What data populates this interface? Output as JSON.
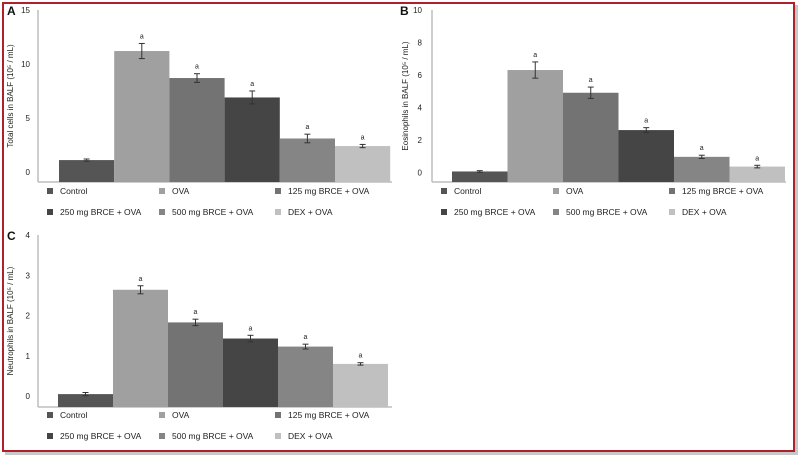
{
  "colors": {
    "frame_border": "#b0202a",
    "axis": "#bdbdbd",
    "error_bar": "#333333",
    "text": "#222222"
  },
  "groups": [
    {
      "name": "Control",
      "color": "#555555"
    },
    {
      "name": "OVA",
      "color": "#a0a0a0"
    },
    {
      "name": "125 mg BRCE + OVA",
      "color": "#737373"
    },
    {
      "name": "250 mg BRCE + OVA",
      "color": "#454545"
    },
    {
      "name": "500 mg BRCE + OVA",
      "color": "#858585"
    },
    {
      "name": "DEX + OVA",
      "color": "#c0c0c0"
    }
  ],
  "chart_data": [
    {
      "panel": "A",
      "type": "bar",
      "title": "",
      "xlabel": "",
      "ylabel": "Total cells in BALF (10⁵ / mL)",
      "categories": [
        "Control",
        "OVA",
        "125 mg BRCE + OVA",
        "250 mg BRCE + OVA",
        "500 mg BRCE + OVA",
        "DEX + OVA"
      ],
      "values": [
        1.1,
        11.2,
        8.7,
        6.9,
        3.1,
        2.4
      ],
      "errors": [
        0.1,
        0.7,
        0.4,
        0.6,
        0.4,
        0.15
      ],
      "annotations": [
        "",
        "a",
        "a",
        "a",
        "a",
        "a"
      ],
      "yticks": [
        0,
        5,
        10,
        15
      ],
      "ylim": [
        -0.93,
        15
      ],
      "grid": false,
      "legend_position": "bottom"
    },
    {
      "panel": "B",
      "type": "bar",
      "title": "",
      "xlabel": "",
      "ylabel": "Eosinophils in BALF (10⁵ / mL)",
      "categories": [
        "Control",
        "OVA",
        "125 mg BRCE + OVA",
        "250 mg BRCE + OVA",
        "500 mg BRCE + OVA",
        "DEX + OVA"
      ],
      "values": [
        0.05,
        6.3,
        4.9,
        2.6,
        0.95,
        0.35
      ],
      "errors": [
        0.05,
        0.5,
        0.35,
        0.15,
        0.1,
        0.08
      ],
      "annotations": [
        "",
        "a",
        "a",
        "a",
        "a",
        "a"
      ],
      "yticks": [
        0,
        2,
        4,
        6,
        8,
        10
      ],
      "ylim": [
        -0.6,
        10
      ],
      "grid": false,
      "legend_position": "bottom"
    },
    {
      "panel": "C",
      "type": "bar",
      "title": "",
      "xlabel": "",
      "ylabel": "Neutrophils in BALF (10⁵ / mL)",
      "categories": [
        "Control",
        "OVA",
        "125 mg BRCE + OVA",
        "250 mg BRCE + OVA",
        "500 mg BRCE + OVA",
        "DEX + OVA"
      ],
      "values": [
        0.05,
        2.64,
        1.83,
        1.43,
        1.23,
        0.8
      ],
      "errors": [
        0.04,
        0.1,
        0.08,
        0.08,
        0.06,
        0.03
      ],
      "annotations": [
        "",
        "a",
        "a",
        "a",
        "a",
        "a"
      ],
      "yticks": [
        0,
        1,
        2,
        3,
        4
      ],
      "ylim": [
        -0.27,
        4
      ],
      "grid": false,
      "legend_position": "bottom"
    }
  ]
}
